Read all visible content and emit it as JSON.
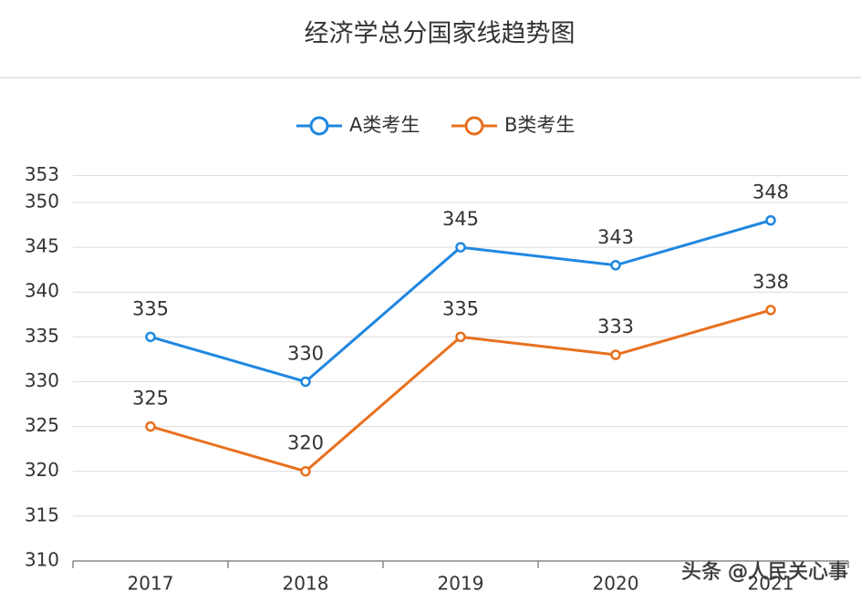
{
  "chart_data": {
    "type": "line",
    "title": "经济学总分国家线趋势图",
    "categories": [
      "2017",
      "2018",
      "2019",
      "2020",
      "2021"
    ],
    "series": [
      {
        "name": "A类考生",
        "color": "#1f87e0",
        "values": [
          335,
          330,
          345,
          343,
          348
        ]
      },
      {
        "name": "B类考生",
        "color": "#e8701e",
        "values": [
          325,
          320,
          335,
          333,
          338
        ]
      }
    ],
    "ylim": [
      310,
      353
    ],
    "yticks": [
      310,
      315,
      320,
      325,
      330,
      335,
      340,
      345,
      350,
      353
    ],
    "grid": true,
    "legend": "top",
    "data_labels": true
  },
  "watermark": "头条 @人民关心事"
}
